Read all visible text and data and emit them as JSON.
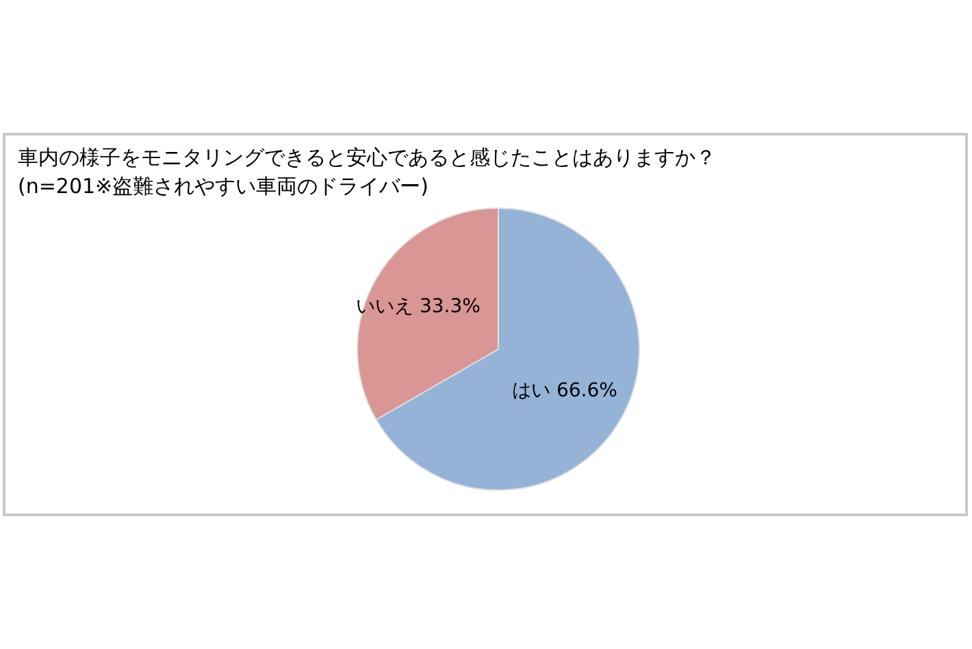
{
  "chart_data": {
    "type": "pie",
    "title": "車内の様子をモニタリングできると安心であると感じたことはありますか？",
    "subtitle": "(n=201※盗難されやすい車両のドライバー)",
    "categories": [
      "はい",
      "いいえ"
    ],
    "values": [
      66.6,
      33.3
    ],
    "colors": [
      "#95b3d7",
      "#d99694"
    ],
    "value_labels": [
      "66.6%",
      "33.3%"
    ]
  }
}
